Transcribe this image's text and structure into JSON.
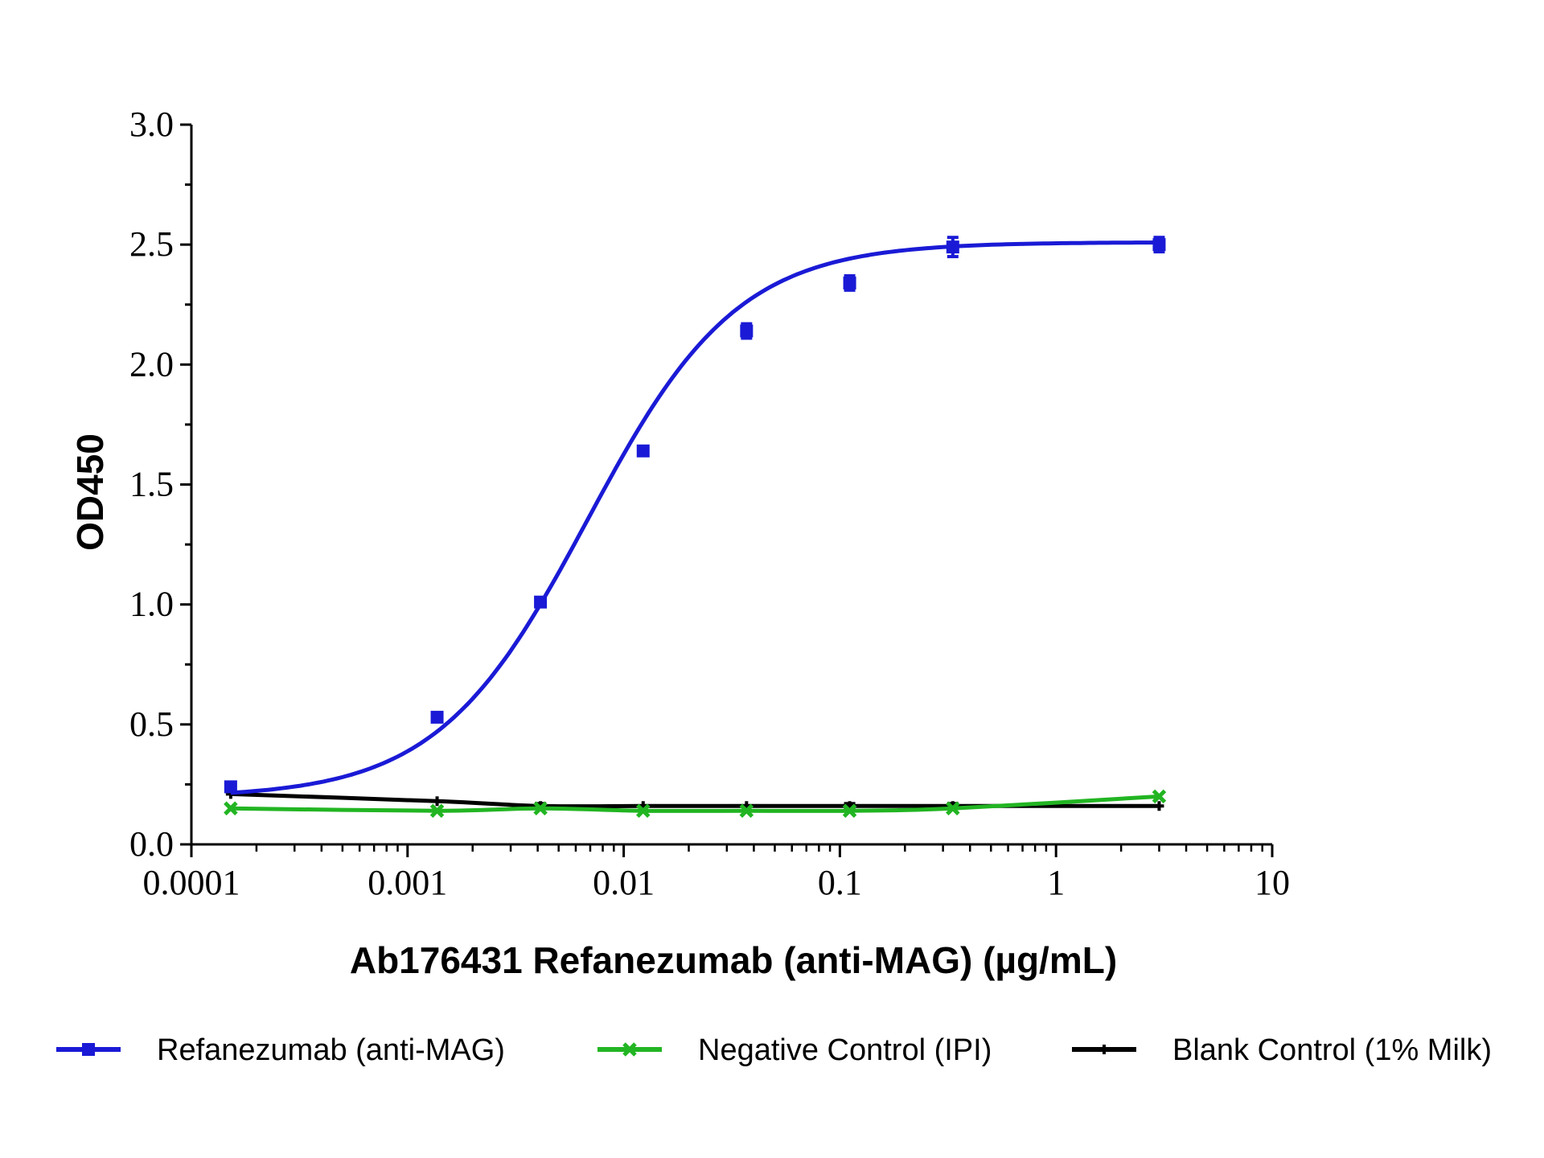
{
  "chart_data": {
    "type": "line",
    "xlabel": "Ab176431 Refanezumab (anti-MAG) (µg/mL)",
    "ylabel": "OD450",
    "xscale": "log",
    "xlim": [
      0.0001,
      10
    ],
    "ylim": [
      0,
      3.0
    ],
    "x_ticks": [
      0.0001,
      0.001,
      0.01,
      0.1,
      1,
      10
    ],
    "x_tick_labels": [
      "0.0001",
      "0.001",
      "0.01",
      "0.1",
      "1",
      "10"
    ],
    "y_ticks": [
      0,
      0.5,
      1.0,
      1.5,
      2.0,
      2.5,
      3.0
    ],
    "y_tick_labels": [
      "0.0",
      "0.5",
      "1.0",
      "1.5",
      "2.0",
      "2.5",
      "3.0"
    ],
    "grid": false,
    "legend_position": "bottom",
    "x": [
      0.000152,
      0.00137,
      0.00412,
      0.0123,
      0.037,
      0.111,
      0.333,
      3.0
    ],
    "series": [
      {
        "name": "Refanezumab (anti-MAG)",
        "color": "#1a1ad6",
        "marker": "square",
        "values": [
          0.24,
          0.53,
          1.01,
          1.64,
          2.14,
          2.34,
          2.49,
          2.5
        ],
        "errors": [
          0.01,
          0.01,
          0.01,
          0.01,
          0.03,
          0.03,
          0.04,
          0.03
        ],
        "curve": "4PL fit"
      },
      {
        "name": "Negative Control (IPI)",
        "color": "#22b522",
        "marker": "x",
        "values": [
          0.15,
          0.14,
          0.15,
          0.14,
          0.14,
          0.14,
          0.15,
          0.2
        ],
        "errors": [
          0,
          0,
          0,
          0,
          0,
          0,
          0,
          0
        ]
      },
      {
        "name": "Blank Control (1% Milk)",
        "color": "#000000",
        "marker": "plus",
        "values": [
          0.21,
          0.18,
          0.16,
          0.16,
          0.16,
          0.16,
          0.16,
          0.16
        ],
        "errors": [
          0,
          0,
          0.01,
          0,
          0,
          0.01,
          0.01,
          0
        ]
      }
    ]
  }
}
